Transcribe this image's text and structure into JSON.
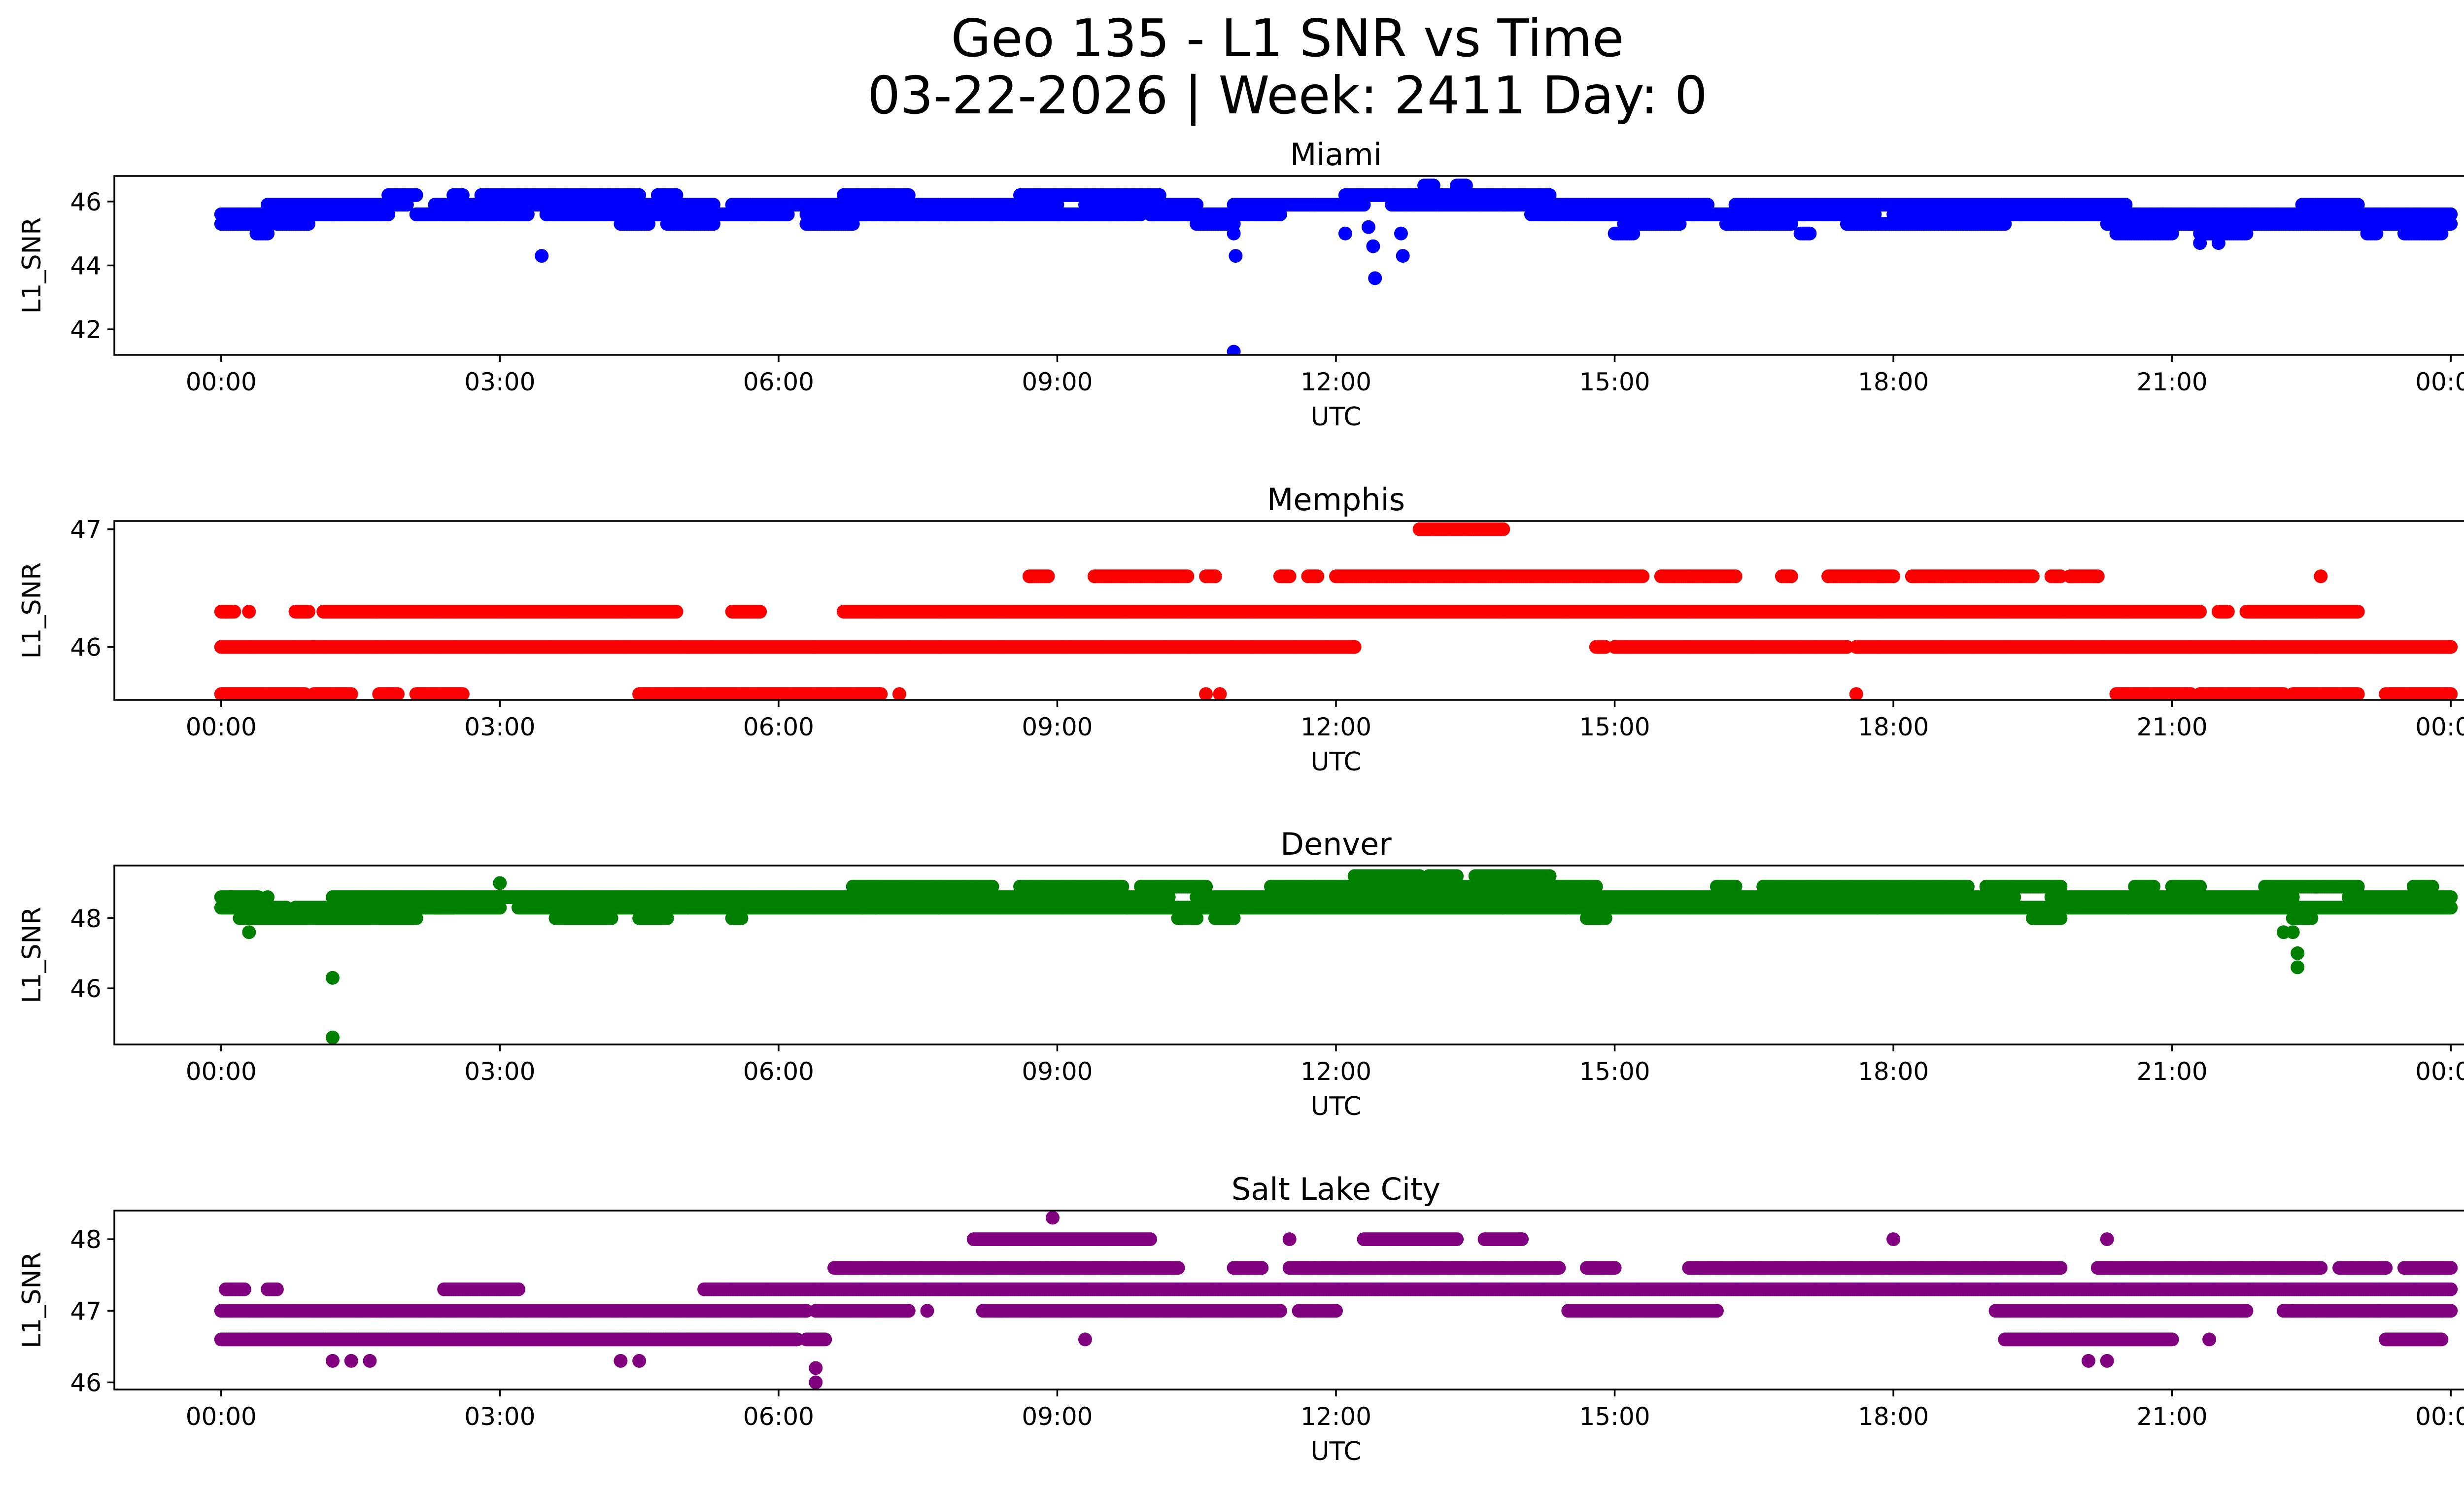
{
  "figure": {
    "title_line1": "Geo 135 - L1 SNR vs Time",
    "title_line2": "03-22-2026 | Week: 2411 Day: 0"
  },
  "chart_data": [
    {
      "type": "scatter",
      "title": "Miami",
      "xlabel": "UTC",
      "ylabel": "L1_SNR",
      "color": "#0000ff",
      "xlim_hours": [
        -1.15,
        25.15
      ],
      "ylim": [
        41.2,
        46.8
      ],
      "yticks": [
        42,
        44,
        46
      ],
      "xticks_hours": [
        0,
        3,
        6,
        9,
        12,
        15,
        18,
        21,
        24
      ],
      "xtick_labels": [
        "00:00",
        "03:00",
        "06:00",
        "09:00",
        "12:00",
        "15:00",
        "18:00",
        "21:00",
        "00:00"
      ],
      "bands": [
        {
          "y": 45.3,
          "segments": [
            [
              0,
              0.55
            ],
            [
              0.6,
              0.95
            ],
            [
              4.3,
              4.6
            ],
            [
              4.8,
              5.3
            ],
            [
              6.3,
              6.8
            ],
            [
              10.5,
              10.9
            ],
            [
              15.1,
              15.7
            ],
            [
              16.2,
              16.9
            ],
            [
              17.5,
              19.2
            ],
            [
              20.3,
              24
            ]
          ]
        },
        {
          "y": 45.6,
          "segments": [
            [
              0,
              1.8
            ],
            [
              2.1,
              3.3
            ],
            [
              3.5,
              4.8
            ],
            [
              4.8,
              6.1
            ],
            [
              6.3,
              9.9
            ],
            [
              10,
              11.4
            ],
            [
              14.1,
              17.8
            ],
            [
              18,
              20.9
            ],
            [
              20.9,
              24
            ]
          ]
        },
        {
          "y": 45.9,
          "segments": [
            [
              0.5,
              2.0
            ],
            [
              2.3,
              3.2
            ],
            [
              3.3,
              5.3
            ],
            [
              5.5,
              9.0
            ],
            [
              9.3,
              10.5
            ],
            [
              10.9,
              12.3
            ],
            [
              12.6,
              14.5
            ],
            [
              14.5,
              16.0
            ],
            [
              16.3,
              20.5
            ],
            [
              22.4,
              23.0
            ]
          ]
        },
        {
          "y": 46.2,
          "segments": [
            [
              1.8,
              2.1
            ],
            [
              2.5,
              2.6
            ],
            [
              2.8,
              4.5
            ],
            [
              4.7,
              4.9
            ],
            [
              6.7,
              7.4
            ],
            [
              8.6,
              10.1
            ],
            [
              12.1,
              14.3
            ]
          ]
        },
        {
          "y": 45.0,
          "segments": [
            [
              0.38,
              0.5
            ],
            [
              15.0,
              15.2
            ],
            [
              17.0,
              17.1
            ],
            [
              20.4,
              21.0
            ],
            [
              21.3,
              21.8
            ],
            [
              23.1,
              23.2
            ],
            [
              23.5,
              23.9
            ]
          ]
        },
        {
          "y": 46.5,
          "segments": [
            [
              12.95,
              13.05
            ],
            [
              13.3,
              13.4
            ]
          ]
        }
      ],
      "outliers": [
        [
          3.45,
          44.3
        ],
        [
          10.9,
          45.0
        ],
        [
          10.92,
          44.3
        ],
        [
          10.9,
          41.3
        ],
        [
          12.1,
          45.0
        ],
        [
          12.35,
          45.2
        ],
        [
          12.4,
          44.6
        ],
        [
          12.42,
          43.6
        ],
        [
          12.7,
          45.0
        ],
        [
          12.72,
          44.3
        ],
        [
          10.9,
          45.3
        ],
        [
          21.3,
          44.7
        ],
        [
          21.5,
          44.7
        ]
      ]
    },
    {
      "type": "scatter",
      "title": "Memphis",
      "xlabel": "UTC",
      "ylabel": "L1_SNR",
      "color": "#ff0000",
      "xlim_hours": [
        -1.15,
        25.15
      ],
      "ylim": [
        45.55,
        47.07
      ],
      "yticks": [
        46,
        47
      ],
      "xticks_hours": [
        0,
        3,
        6,
        9,
        12,
        15,
        18,
        21,
        24
      ],
      "xtick_labels": [
        "00:00",
        "03:00",
        "06:00",
        "09:00",
        "12:00",
        "15:00",
        "18:00",
        "21:00",
        "00:00"
      ],
      "bands": [
        {
          "y": 45.6,
          "segments": [
            [
              0,
              0.9
            ],
            [
              1.0,
              1.4
            ],
            [
              1.7,
              1.9
            ],
            [
              2.1,
              2.6
            ],
            [
              4.5,
              7.1
            ],
            [
              20.4,
              21.2
            ],
            [
              21.3,
              22.2
            ],
            [
              22.3,
              23.0
            ],
            [
              23.3,
              24
            ]
          ]
        },
        {
          "y": 46.0,
          "segments": [
            [
              0,
              12.2
            ],
            [
              14.8,
              14.9
            ],
            [
              15.0,
              17.0
            ],
            [
              17.0,
              17.5
            ],
            [
              17.6,
              24
            ]
          ]
        },
        {
          "y": 46.3,
          "segments": [
            [
              0,
              0.15
            ],
            [
              0.8,
              0.95
            ],
            [
              1.1,
              4.9
            ],
            [
              5.5,
              5.8
            ],
            [
              6.7,
              21.3
            ],
            [
              21.5,
              21.6
            ],
            [
              21.8,
              23.0
            ]
          ]
        },
        {
          "y": 46.6,
          "segments": [
            [
              8.7,
              8.9
            ],
            [
              9.4,
              10.4
            ],
            [
              10.6,
              10.7
            ],
            [
              11.4,
              11.5
            ],
            [
              11.7,
              11.8
            ],
            [
              12.0,
              15.3
            ],
            [
              15.5,
              16.3
            ],
            [
              16.8,
              16.9
            ],
            [
              17.3,
              18.0
            ],
            [
              18.2,
              19.5
            ],
            [
              19.7,
              19.8
            ],
            [
              19.9,
              20.2
            ]
          ]
        },
        {
          "y": 47.0,
          "segments": [
            [
              12.9,
              13.8
            ]
          ]
        }
      ],
      "outliers": [
        [
          0.05,
          46.3
        ],
        [
          0.3,
          46.3
        ],
        [
          10.6,
          45.6
        ],
        [
          10.75,
          45.6
        ],
        [
          7.3,
          45.6
        ],
        [
          17.6,
          45.6
        ],
        [
          22.6,
          46.6
        ],
        [
          12.15,
          46.0
        ]
      ]
    },
    {
      "type": "scatter",
      "title": "Denver",
      "xlabel": "UTC",
      "ylabel": "L1_SNR",
      "color": "#008000",
      "xlim_hours": [
        -1.15,
        25.15
      ],
      "ylim": [
        44.4,
        49.5
      ],
      "yticks": [
        46,
        48
      ],
      "xticks_hours": [
        0,
        3,
        6,
        9,
        12,
        15,
        18,
        21,
        24
      ],
      "xtick_labels": [
        "00:00",
        "03:00",
        "06:00",
        "09:00",
        "12:00",
        "15:00",
        "18:00",
        "21:00",
        "00:00"
      ],
      "bands": [
        {
          "y": 48.0,
          "segments": [
            [
              0.2,
              2.1
            ],
            [
              3.6,
              4.2
            ],
            [
              4.5,
              4.8
            ],
            [
              5.5,
              5.6
            ],
            [
              10.3,
              10.5
            ],
            [
              10.7,
              10.9
            ],
            [
              14.7,
              14.9
            ],
            [
              19.5,
              19.8
            ],
            [
              22.3,
              22.5
            ]
          ]
        },
        {
          "y": 48.3,
          "segments": [
            [
              0,
              0.7
            ],
            [
              0.8,
              2.5
            ],
            [
              2.3,
              3.0
            ],
            [
              3.2,
              6.9
            ],
            [
              6.9,
              24
            ]
          ]
        },
        {
          "y": 48.6,
          "segments": [
            [
              0,
              0.4
            ],
            [
              1.2,
              3.0
            ],
            [
              3.0,
              10.2
            ],
            [
              10.5,
              14.5
            ],
            [
              14.6,
              16.6
            ],
            [
              16.6,
              19.3
            ],
            [
              19.7,
              22.3
            ],
            [
              22.9,
              24
            ]
          ]
        },
        {
          "y": 48.9,
          "segments": [
            [
              6.8,
              8.3
            ],
            [
              8.6,
              9.7
            ],
            [
              9.9,
              10.6
            ],
            [
              11.3,
              12.1
            ],
            [
              12.1,
              14.8
            ],
            [
              16.1,
              16.3
            ],
            [
              16.6,
              18.8
            ],
            [
              19.0,
              19.8
            ],
            [
              20.6,
              20.8
            ],
            [
              21.0,
              21.3
            ],
            [
              22.0,
              23.0
            ],
            [
              23.6,
              23.8
            ]
          ]
        },
        {
          "y": 49.2,
          "segments": [
            [
              12.2,
              12.9
            ],
            [
              13.0,
              13.3
            ],
            [
              13.5,
              14.3
            ]
          ]
        }
      ],
      "outliers": [
        [
          0.3,
          47.6
        ],
        [
          1.2,
          46.3
        ],
        [
          1.2,
          44.6
        ],
        [
          3.0,
          49.0
        ],
        [
          22.2,
          47.6
        ],
        [
          22.3,
          47.6
        ],
        [
          22.35,
          47.0
        ],
        [
          22.35,
          46.6
        ],
        [
          0.1,
          48.6
        ],
        [
          0.5,
          48.6
        ]
      ]
    },
    {
      "type": "scatter",
      "title": "Salt Lake City",
      "xlabel": "UTC",
      "ylabel": "L1_SNR",
      "color": "#800080",
      "xlim_hours": [
        -1.15,
        25.15
      ],
      "ylim": [
        45.9,
        48.4
      ],
      "yticks": [
        46,
        47,
        48
      ],
      "xticks_hours": [
        0,
        3,
        6,
        9,
        12,
        15,
        18,
        21,
        24
      ],
      "xtick_labels": [
        "00:00",
        "03:00",
        "06:00",
        "09:00",
        "12:00",
        "15:00",
        "18:00",
        "21:00",
        "00:00"
      ],
      "bands": [
        {
          "y": 46.6,
          "segments": [
            [
              0,
              5.9
            ],
            [
              5.9,
              6.2
            ],
            [
              6.3,
              6.5
            ],
            [
              19.2,
              21.0
            ],
            [
              23.3,
              23.9
            ]
          ]
        },
        {
          "y": 47.0,
          "segments": [
            [
              0,
              6.3
            ],
            [
              6.4,
              7.4
            ],
            [
              8.2,
              11.4
            ],
            [
              11.6,
              12.0
            ],
            [
              14.5,
              16.1
            ],
            [
              19.1,
              21.8
            ],
            [
              22.2,
              24
            ]
          ]
        },
        {
          "y": 47.3,
          "segments": [
            [
              0.05,
              0.25
            ],
            [
              0.5,
              0.6
            ],
            [
              2.4,
              3.2
            ],
            [
              5.2,
              24
            ]
          ]
        },
        {
          "y": 47.6,
          "segments": [
            [
              6.6,
              10.3
            ],
            [
              10.9,
              11.2
            ],
            [
              11.5,
              14.4
            ],
            [
              14.7,
              15.0
            ],
            [
              15.8,
              19.8
            ],
            [
              20.2,
              22.6
            ],
            [
              22.8,
              23.3
            ],
            [
              23.5,
              24
            ]
          ]
        },
        {
          "y": 48.0,
          "segments": [
            [
              8.1,
              10.0
            ],
            [
              12.3,
              13.3
            ],
            [
              13.6,
              14.0
            ]
          ]
        }
      ],
      "outliers": [
        [
          8.95,
          48.3
        ],
        [
          1.2,
          46.3
        ],
        [
          1.4,
          46.3
        ],
        [
          1.6,
          46.3
        ],
        [
          4.3,
          46.3
        ],
        [
          4.5,
          46.3
        ],
        [
          9.3,
          46.6
        ],
        [
          6.4,
          46.2
        ],
        [
          6.4,
          46.0
        ],
        [
          7.6,
          47.0
        ],
        [
          11.2,
          47.6
        ],
        [
          11.5,
          48.0
        ],
        [
          14.0,
          48.0
        ],
        [
          18.0,
          48.0
        ],
        [
          20.3,
          48.0
        ],
        [
          20.1,
          46.3
        ],
        [
          20.3,
          46.3
        ],
        [
          21.4,
          46.6
        ],
        [
          22.3,
          47.0
        ]
      ]
    }
  ]
}
